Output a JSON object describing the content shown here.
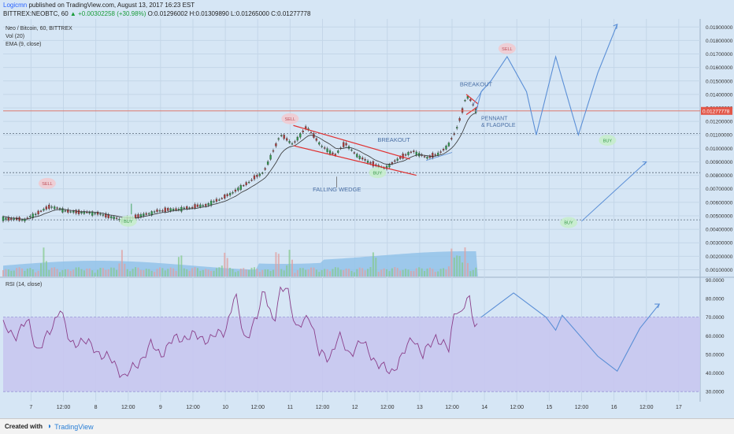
{
  "header": {
    "author": "Logicmn",
    "published": "published on TradingView.com, August 13, 2017 16:23 EST",
    "symbol": "BITTREX:NEOBTC, 60",
    "change": "▲ +0.00302258 (+30.98%)",
    "ohlc": "O:0.01296002 H:0.01309890 L:0.01265000 C:0.01277778"
  },
  "footer": {
    "created": "Created with",
    "brand": "TradingView"
  },
  "chart_data": [
    {
      "type": "candlestick",
      "legend": [
        "Neo / Bitcoin, 60, BITTREX",
        "Vol (20)",
        "EMA (9, close)"
      ],
      "y_ticks": [
        "0.01900000",
        "0.01800000",
        "0.01700000",
        "0.01600000",
        "0.01500000",
        "0.01400000",
        "0.01300000",
        "0.01200000",
        "0.01100000",
        "0.01000000",
        "0.00900000",
        "0.00800000",
        "0.00700000",
        "0.00600000",
        "0.00500000",
        "0.00400000",
        "0.00300000",
        "0.00200000",
        "0.00100000"
      ],
      "y_tick_values": [
        0.019,
        0.018,
        0.017,
        0.016,
        0.015,
        0.014,
        0.013,
        0.012,
        0.011,
        0.01,
        0.009,
        0.008,
        0.007,
        0.006,
        0.005,
        0.004,
        0.003,
        0.002,
        0.001
      ],
      "ylim": [
        0.0005,
        0.0196
      ],
      "last_price": "0.01277778",
      "last_price_value": 0.01277778,
      "x_ticks": [
        "7",
        "12:00",
        "8",
        "12:00",
        "9",
        "12:00",
        "10",
        "12:00",
        "11",
        "12:00",
        "12",
        "12:00",
        "13",
        "12:00",
        "14",
        "12:00",
        "15",
        "12:00",
        "16",
        "12:00",
        "17"
      ],
      "x_tick_days": [
        7,
        7.5,
        8,
        8.5,
        9,
        9.5,
        10,
        10.5,
        11,
        11.5,
        12,
        12.5,
        13,
        13.5,
        14,
        14.5,
        15,
        15.5,
        16,
        16.5,
        17
      ],
      "xlim": [
        6.57,
        17.33
      ],
      "dotted_levels": [
        0.0111,
        0.0082,
        0.0047
      ],
      "price_anchors": [
        [
          6.57,
          0.0048
        ],
        [
          6.9,
          0.0047
        ],
        [
          7.3,
          0.0057
        ],
        [
          7.6,
          0.0053
        ],
        [
          8.0,
          0.0052
        ],
        [
          8.4,
          0.0047
        ],
        [
          8.6,
          0.0049
        ],
        [
          9.0,
          0.0054
        ],
        [
          9.3,
          0.0055
        ],
        [
          9.7,
          0.0058
        ],
        [
          10.0,
          0.0064
        ],
        [
          10.3,
          0.0073
        ],
        [
          10.6,
          0.0083
        ],
        [
          10.85,
          0.011
        ],
        [
          11.05,
          0.0103
        ],
        [
          11.25,
          0.0116
        ],
        [
          11.5,
          0.0101
        ],
        [
          11.7,
          0.0095
        ],
        [
          11.85,
          0.0104
        ],
        [
          12.0,
          0.0096
        ],
        [
          12.2,
          0.009
        ],
        [
          12.45,
          0.0085
        ],
        [
          12.7,
          0.0093
        ],
        [
          12.9,
          0.0098
        ],
        [
          13.1,
          0.0093
        ],
        [
          13.3,
          0.0096
        ],
        [
          13.45,
          0.0103
        ],
        [
          13.55,
          0.0112
        ],
        [
          13.65,
          0.0126
        ],
        [
          13.72,
          0.0139
        ],
        [
          13.8,
          0.0135
        ],
        [
          13.87,
          0.0128
        ]
      ],
      "volume_peak_days": [
        7.2,
        8.4,
        9.3,
        10.0,
        10.8,
        11.0,
        12.3,
        13.5,
        13.6,
        13.7
      ],
      "price_projection": [
        [
          13.87,
          0.0127
        ],
        [
          13.95,
          0.0142
        ],
        [
          14.1,
          0.015
        ],
        [
          14.35,
          0.0168
        ],
        [
          14.65,
          0.0142
        ],
        [
          14.8,
          0.011
        ],
        [
          15.1,
          0.0168
        ],
        [
          15.45,
          0.011
        ],
        [
          15.75,
          0.0156
        ],
        [
          16.05,
          0.0192
        ]
      ],
      "wedge_projection": [
        [
          15.5,
          0.0046
        ],
        [
          16.5,
          0.009
        ]
      ],
      "annotations": [
        "BREAKOUT",
        "BREAKOUT",
        "FALLING WEDGE",
        "PENNANT",
        "& FLAGPOLE",
        "SELL",
        "SELL",
        "SELL",
        "BUY",
        "BUY",
        "BUY",
        "BUY"
      ]
    },
    {
      "type": "line",
      "legend": [
        "RSI (14, close)"
      ],
      "y_ticks": [
        "90.0000",
        "80.0000",
        "70.0000",
        "60.0000",
        "50.0000",
        "40.0000",
        "30.0000"
      ],
      "y_tick_values": [
        90,
        80,
        70,
        60,
        50,
        40,
        30
      ],
      "ylim": [
        25,
        91
      ],
      "band": [
        30,
        70
      ],
      "rsi_anchors": [
        [
          6.57,
          65
        ],
        [
          6.75,
          60
        ],
        [
          6.95,
          68
        ],
        [
          7.1,
          52
        ],
        [
          7.3,
          62
        ],
        [
          7.45,
          76
        ],
        [
          7.6,
          55
        ],
        [
          7.8,
          58
        ],
        [
          8.0,
          52
        ],
        [
          8.2,
          48
        ],
        [
          8.45,
          38
        ],
        [
          8.65,
          45
        ],
        [
          8.85,
          55
        ],
        [
          9.0,
          50
        ],
        [
          9.2,
          58
        ],
        [
          9.5,
          60
        ],
        [
          9.75,
          58
        ],
        [
          10.0,
          63
        ],
        [
          10.15,
          82
        ],
        [
          10.3,
          58
        ],
        [
          10.5,
          70
        ],
        [
          10.6,
          86
        ],
        [
          10.75,
          66
        ],
        [
          10.85,
          83
        ],
        [
          10.95,
          88
        ],
        [
          11.1,
          62
        ],
        [
          11.3,
          72
        ],
        [
          11.45,
          50
        ],
        [
          11.6,
          48
        ],
        [
          11.75,
          60
        ],
        [
          11.9,
          50
        ],
        [
          12.1,
          57
        ],
        [
          12.35,
          45
        ],
        [
          12.55,
          40
        ],
        [
          12.75,
          50
        ],
        [
          12.9,
          60
        ],
        [
          13.05,
          49
        ],
        [
          13.25,
          60
        ],
        [
          13.45,
          52
        ],
        [
          13.55,
          76
        ],
        [
          13.65,
          72
        ],
        [
          13.75,
          82
        ],
        [
          13.82,
          68
        ],
        [
          13.9,
          66
        ]
      ],
      "rsi_projection": [
        [
          13.95,
          70
        ],
        [
          14.45,
          83
        ],
        [
          14.95,
          70
        ],
        [
          15.1,
          63
        ],
        [
          15.2,
          71
        ],
        [
          15.75,
          49
        ],
        [
          16.05,
          41
        ],
        [
          16.4,
          64
        ],
        [
          16.7,
          77
        ]
      ]
    }
  ]
}
